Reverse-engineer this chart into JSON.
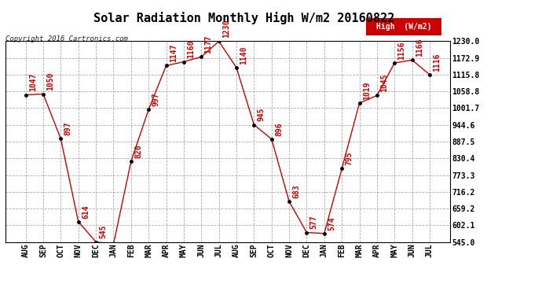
{
  "title": "Solar Radiation Monthly High W/m2 20160822",
  "copyright": "Copyright 2016 Cartronics.com",
  "legend_label": "High  (W/m2)",
  "x_labels": [
    "AUG",
    "SEP",
    "OCT",
    "NOV",
    "DEC",
    "JAN",
    "FEB",
    "MAR",
    "APR",
    "MAY",
    "JUN",
    "JUL",
    "AUG",
    "SEP",
    "OCT",
    "NOV",
    "DEC",
    "JAN",
    "FEB",
    "MAR",
    "APR",
    "MAY",
    "JUN",
    "JUL"
  ],
  "y_values": [
    1047,
    1050,
    897,
    614,
    545,
    537,
    820,
    997,
    1147,
    1160,
    1177,
    1230,
    1140,
    945,
    896,
    683,
    577,
    574,
    795,
    1019,
    1045,
    1156,
    1166,
    1116
  ],
  "ylim": [
    545.0,
    1230.0
  ],
  "yticks": [
    545.0,
    602.1,
    659.2,
    716.2,
    773.3,
    830.4,
    887.5,
    944.6,
    1001.7,
    1058.8,
    1115.8,
    1172.9,
    1230.0
  ],
  "line_color": "#cc0000",
  "marker_color": "#000000",
  "bg_color": "#ffffff",
  "grid_color": "#aaaaaa",
  "title_fontsize": 11,
  "label_fontsize": 7,
  "annotation_fontsize": 7,
  "legend_bg": "#cc0000",
  "legend_text_color": "#ffffff"
}
